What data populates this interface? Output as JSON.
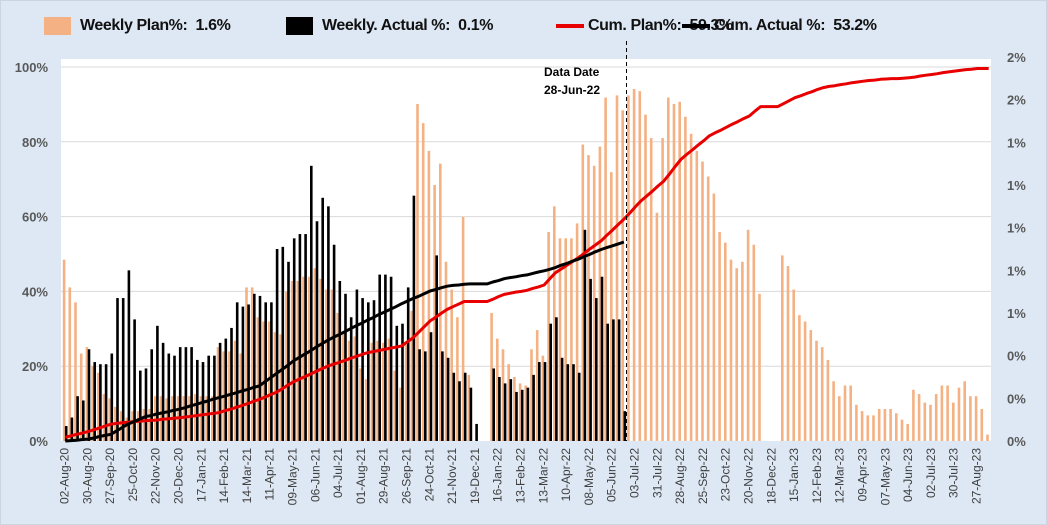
{
  "legend": {
    "weekly_plan": {
      "label": "Weekly Plan%:  1.6%",
      "color": "#f4b183"
    },
    "weekly_actual": {
      "label": "Weekly. Actual %:  0.1%",
      "color": "#000000"
    },
    "cum_plan": {
      "label": "Cum. Plan%:  59.3%",
      "color": "#e80000"
    },
    "cum_actual": {
      "label": "Cum. Actual %:  53.2%",
      "color": "#000000"
    }
  },
  "annotation": {
    "line1": "Data Date",
    "line2": "28-Jun-22"
  },
  "chart_data": {
    "type": "bar+line",
    "x_tick_labels": [
      "02-Aug-20",
      "30-Aug-20",
      "27-Sep-20",
      "25-Oct-20",
      "22-Nov-20",
      "20-Dec-20",
      "17-Jan-21",
      "14-Feb-21",
      "14-Mar-21",
      "11-Apr-21",
      "09-May-21",
      "06-Jun-21",
      "04-Jul-21",
      "01-Aug-21",
      "29-Aug-21",
      "26-Sep-21",
      "24-Oct-21",
      "21-Nov-21",
      "19-Dec-21",
      "16-Jan-22",
      "13-Feb-22",
      "13-Mar-22",
      "10-Apr-22",
      "08-May-22",
      "05-Jun-22",
      "03-Jul-22",
      "31-Jul-22",
      "28-Aug-22",
      "25-Sep-22",
      "23-Oct-22",
      "20-Nov-22",
      "18-Dec-22",
      "15-Jan-23",
      "12-Feb-23",
      "12-Mar-23",
      "09-Apr-23",
      "07-May-23",
      "04-Jun-23",
      "02-Jul-23",
      "30-Jul-23",
      "27-Aug-23"
    ],
    "left_axis": {
      "ylim": [
        0,
        100
      ],
      "ticks": [
        0,
        20,
        40,
        60,
        80,
        100
      ],
      "tick_labels": [
        "0%",
        "20%",
        "40%",
        "60%",
        "80%",
        "100%"
      ]
    },
    "right_axis": {
      "ylim": [
        0,
        1.8
      ],
      "ticks": [
        0,
        0.2,
        0.4,
        0.6,
        0.8,
        1.0,
        1.2,
        1.4,
        1.6,
        1.8
      ],
      "tick_labels": [
        "0%",
        "0%",
        "0%",
        "1%",
        "1%",
        "1%",
        "1%",
        "1%",
        "2%",
        "2%"
      ]
    },
    "grid": true,
    "legend_position": "top",
    "series": [
      {
        "name": "Weekly Plan%",
        "type": "bar",
        "axis": "right",
        "values": [
          0.85,
          0.72,
          0.65,
          0.41,
          0.44,
          0.35,
          0.32,
          0.22,
          0.2,
          0.16,
          0.14,
          0.11,
          0.14,
          0.14,
          0.15,
          0.15,
          0.21,
          0.21,
          0.2,
          0.21,
          0.21,
          0.21,
          0.21,
          0.22,
          0.21,
          0.21,
          0.21,
          0.44,
          0.42,
          0.42,
          0.47,
          0.41,
          0.72,
          0.72,
          0.58,
          0.56,
          0.56,
          0.51,
          0.5,
          0.7,
          0.75,
          0.75,
          0.77,
          0.77,
          0.81,
          0.76,
          0.71,
          0.71,
          0.6,
          0.51,
          0.47,
          0.49,
          0.34,
          0.29,
          0.46,
          0.47,
          0.46,
          0.48,
          0.33,
          0.25,
          0.45,
          0.61,
          1.58,
          1.49,
          1.36,
          1.2,
          1.3,
          0.84,
          0.71,
          0.58,
          1.05,
          0.31,
          0,
          0,
          0,
          0.6,
          0.48,
          0.43,
          0.36,
          0.3,
          0.27,
          0.26,
          0.43,
          0.52,
          0.4,
          0.98,
          1.1,
          0.95,
          0.95,
          0.95,
          1.02,
          1.39,
          1.34,
          1.29,
          1.38,
          1.61,
          1.26,
          1.62,
          1.55,
          1.62,
          1.65,
          1.64,
          1.53,
          1.42,
          1.07,
          1.42,
          1.61,
          1.58,
          1.59,
          1.52,
          1.44,
          1.36,
          1.31,
          1.24,
          1.16,
          0.98,
          0.93,
          0.85,
          0.81,
          0.84,
          0.99,
          0.92,
          0.69,
          0,
          0,
          0,
          0.87,
          0.82,
          0.71,
          0.59,
          0.56,
          0.52,
          0.47,
          0.44,
          0.38,
          0.28,
          0.21,
          0.26,
          0.26,
          0.17,
          0.14,
          0.12,
          0.12,
          0.15,
          0.15,
          0.15,
          0.13,
          0.1,
          0.08,
          0.24,
          0.22,
          0.18,
          0.17,
          0.22,
          0.26,
          0.26,
          0.18,
          0.25,
          0.28,
          0.21,
          0.21,
          0.15,
          0.03
        ]
      },
      {
        "name": "Weekly. Actual %",
        "type": "bar",
        "axis": "right",
        "values": [
          0.07,
          0.11,
          0.21,
          0.19,
          0.43,
          0.37,
          0.36,
          0.36,
          0.41,
          0.67,
          0.67,
          0.8,
          0.57,
          0.33,
          0.34,
          0.43,
          0.54,
          0.46,
          0.41,
          0.4,
          0.44,
          0.44,
          0.44,
          0.38,
          0.37,
          0.4,
          0.4,
          0.46,
          0.48,
          0.53,
          0.65,
          0.63,
          0.64,
          0.69,
          0.68,
          0.65,
          0.65,
          0.9,
          0.91,
          0.84,
          0.95,
          0.97,
          0.97,
          1.29,
          1.03,
          1.14,
          1.1,
          0.92,
          0.75,
          0.69,
          0.58,
          0.71,
          0.67,
          0.65,
          0.66,
          0.78,
          0.78,
          0.77,
          0.54,
          0.55,
          0.72,
          1.15,
          0.43,
          0.42,
          0.51,
          0.87,
          0.42,
          0.39,
          0.32,
          0.28,
          0.32,
          0.25,
          0.08,
          0,
          0,
          0.34,
          0.3,
          0.27,
          0.29,
          0.23,
          0.24,
          0.25,
          0.31,
          0.37,
          0.37,
          0.55,
          0.58,
          0.39,
          0.36,
          0.36,
          0.32,
          0.99,
          0.76,
          0.67,
          0.77,
          0.55,
          0.57,
          0.57,
          0.14
        ]
      },
      {
        "name": "Cum. Plan%",
        "type": "line",
        "axis": "left",
        "values": [
          1,
          1.4,
          1.8,
          2.1,
          2.5,
          3,
          3.5,
          4,
          4.5,
          4.7,
          4.9,
          5,
          5.2,
          5.3,
          5.4,
          5.5,
          5.6,
          5.8,
          5.9,
          6.1,
          6.2,
          6.4,
          6.6,
          6.8,
          7,
          7.2,
          7.4,
          7.6,
          8.1,
          8.5,
          9,
          9.5,
          10,
          10.6,
          11.1,
          11.7,
          12.4,
          13,
          13.9,
          14.9,
          15.8,
          16.5,
          17.2,
          17.9,
          18.6,
          19.3,
          20,
          20.5,
          21,
          21.5,
          22.1,
          22.6,
          23.1,
          23.6,
          23.9,
          24.2,
          24.5,
          24.8,
          25.1,
          25.4,
          26.5,
          27.6,
          29.1,
          30.6,
          32.1,
          33.1,
          34.2,
          35.2,
          35.9,
          36.6,
          37.3,
          37.3,
          37.3,
          37.3,
          37.3,
          37.9,
          38.6,
          39.2,
          39.5,
          39.8,
          40,
          40.3,
          40.8,
          41.2,
          41.7,
          43.4,
          45,
          46,
          47,
          48,
          49,
          50.1,
          51.3,
          52.4,
          53.5,
          55,
          56.4,
          57.9,
          59.3,
          60.9,
          62.6,
          64.2,
          65.5,
          66.8,
          68.2,
          69.5,
          71.4,
          73.4,
          75.3,
          76.6,
          77.8,
          79.1,
          80.3,
          81.6,
          82.4,
          83.1,
          83.9,
          84.7,
          85.4,
          86.2,
          86.9,
          88.2,
          89.4,
          89.4,
          89.4,
          89.4,
          90.2,
          91,
          91.8,
          92.3,
          92.9,
          93.4,
          94,
          94.5,
          94.8,
          95,
          95.3,
          95.5,
          95.8,
          96,
          96.2,
          96.4,
          96.5,
          96.7,
          96.8,
          96.9,
          96.9,
          97,
          97.1,
          97.3,
          97.6,
          97.8,
          98,
          98.2,
          98.5,
          98.7,
          98.9,
          99.1,
          99.3,
          99.4,
          99.6,
          99.6,
          99.6
        ]
      },
      {
        "name": "Cum. Actual %",
        "type": "line",
        "axis": "left",
        "values": [
          0,
          0.1,
          0.2,
          0.4,
          0.5,
          0.8,
          1.2,
          1.5,
          1.8,
          2.7,
          3.6,
          4.5,
          5.2,
          5.8,
          6.5,
          6.8,
          7.2,
          7.5,
          7.8,
          8.2,
          8.5,
          8.9,
          9.4,
          9.8,
          10.3,
          10.7,
          11.2,
          11.6,
          12,
          12.5,
          12.9,
          13.4,
          13.8,
          14.3,
          14.7,
          15.8,
          16.9,
          18,
          19.1,
          20.2,
          21.4,
          22.3,
          23.2,
          24.1,
          25.1,
          26,
          26.9,
          27.7,
          28.4,
          29.2,
          30,
          30.8,
          31.5,
          32.3,
          33,
          33.8,
          34.5,
          35.2,
          35.9,
          36.7,
          37.4,
          38.1,
          38.7,
          39.4,
          40.1,
          40.5,
          41,
          41.4,
          41.6,
          41.7,
          41.9,
          42,
          42,
          42,
          42,
          42.5,
          42.9,
          43.4,
          43.7,
          43.9,
          44.2,
          44.4,
          44.8,
          45.2,
          45.5,
          45.9,
          46.4,
          47,
          47.5,
          48.1,
          48.6,
          49.3,
          49.9,
          50.6,
          51.2,
          51.7,
          52.2,
          52.7,
          53.2
        ]
      }
    ]
  }
}
